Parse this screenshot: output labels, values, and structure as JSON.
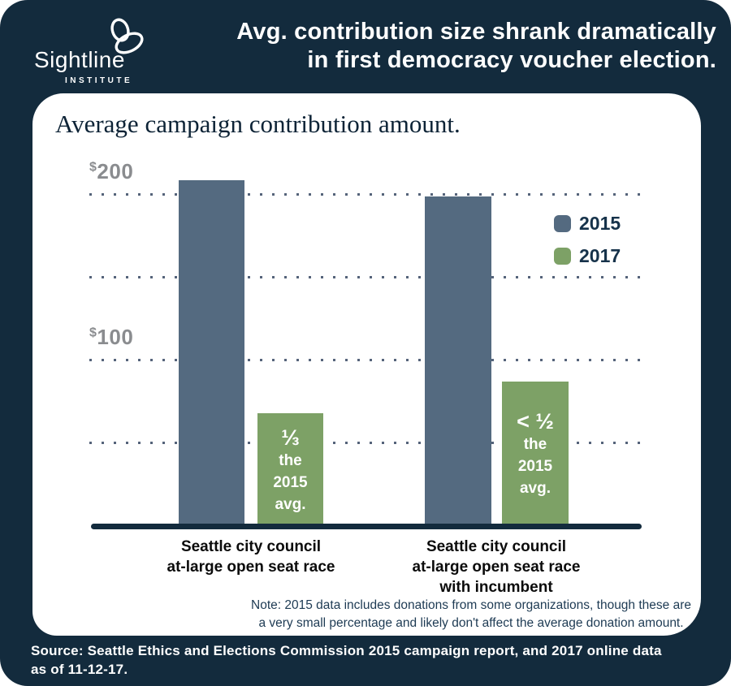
{
  "page": {
    "bg_color": "#132b3d",
    "header": {
      "logo_name": "Sightline",
      "logo_sub": "INSTITUTE",
      "title_line1": "Avg. contribution size shrank dramatically",
      "title_line2": "in first democracy voucher election."
    },
    "note": {
      "line1": "Note: 2015 data includes donations from some organizations, though these are",
      "line2": "a very small percentage and likely don't affect the average donation amount."
    },
    "source": {
      "line1": "Source: Seattle Ethics and Elections Commission 2015 campaign report, and 2017 online data",
      "line2": "as of 11-12-17."
    }
  },
  "chart_data": {
    "type": "bar",
    "title": "Average campaign contribution amount.",
    "categories": [
      "Seattle city council at-large open seat race",
      "Seattle city council at-large open seat race with incumbent"
    ],
    "category_lines": [
      [
        "Seattle city council",
        "at-large open seat race"
      ],
      [
        "Seattle city council",
        "at-large open seat race",
        "with incumbent"
      ]
    ],
    "series": [
      {
        "name": "2015",
        "color": "#546a80",
        "values": [
          208,
          198
        ]
      },
      {
        "name": "2017",
        "color": "#7da166",
        "values": [
          68,
          87
        ]
      }
    ],
    "annotations": [
      {
        "bar": "2017 open seat",
        "lines": [
          "⅓",
          "the",
          "2015",
          "avg."
        ]
      },
      {
        "bar": "2017 incumbent",
        "lines": [
          "< ½",
          "the",
          "2015",
          "avg."
        ]
      }
    ],
    "yticks": [
      {
        "prefix": "$",
        "label": "200",
        "value": 200
      },
      {
        "prefix": "$",
        "label": "100",
        "value": 100
      }
    ],
    "gridlines_dollars": [
      200,
      150,
      100,
      50
    ],
    "ylim": [
      0,
      215
    ],
    "grid": "dotted horizontal",
    "legend_position": "upper right"
  }
}
